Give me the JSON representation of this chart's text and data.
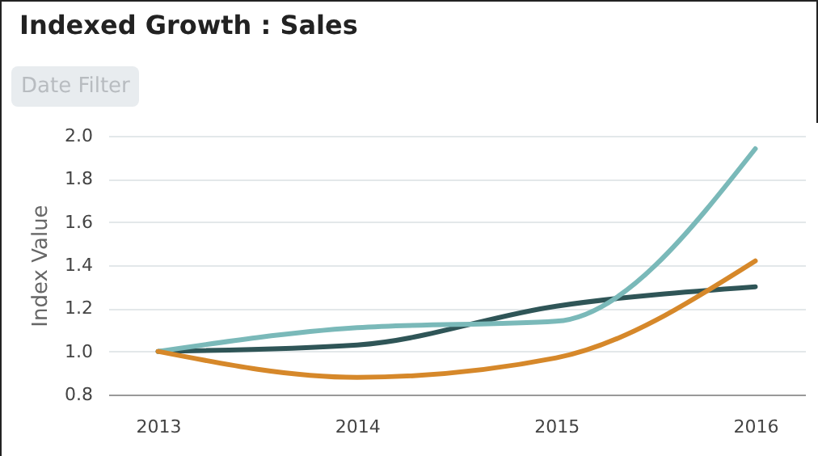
{
  "chart_data": {
    "type": "line",
    "title": "Indexed Growth : Sales",
    "ylabel": "Index Value",
    "annotations": [
      "Date Filter"
    ],
    "categories": [
      "2013",
      "2014",
      "2015",
      "2016"
    ],
    "series": [
      {
        "color": "#2f5557",
        "values": [
          1.0,
          1.03,
          1.21,
          1.3
        ]
      },
      {
        "color": "#7ab9b9",
        "values": [
          1.0,
          1.11,
          1.14,
          1.94
        ]
      },
      {
        "color": "#d6882a",
        "values": [
          1.0,
          0.88,
          0.97,
          1.42
        ]
      }
    ],
    "ylim": [
      0.8,
      2.0
    ],
    "yticks": [
      {
        "value": 0.8,
        "label": "0.8"
      },
      {
        "value": 1.0,
        "label": "1.0"
      },
      {
        "value": 1.2,
        "label": "1.2"
      },
      {
        "value": 1.4,
        "label": "1.4"
      },
      {
        "value": 1.6,
        "label": "1.6"
      },
      {
        "value": 1.8,
        "label": "1.8"
      },
      {
        "value": 2.0,
        "label": "2.0"
      }
    ],
    "grid": "y"
  }
}
